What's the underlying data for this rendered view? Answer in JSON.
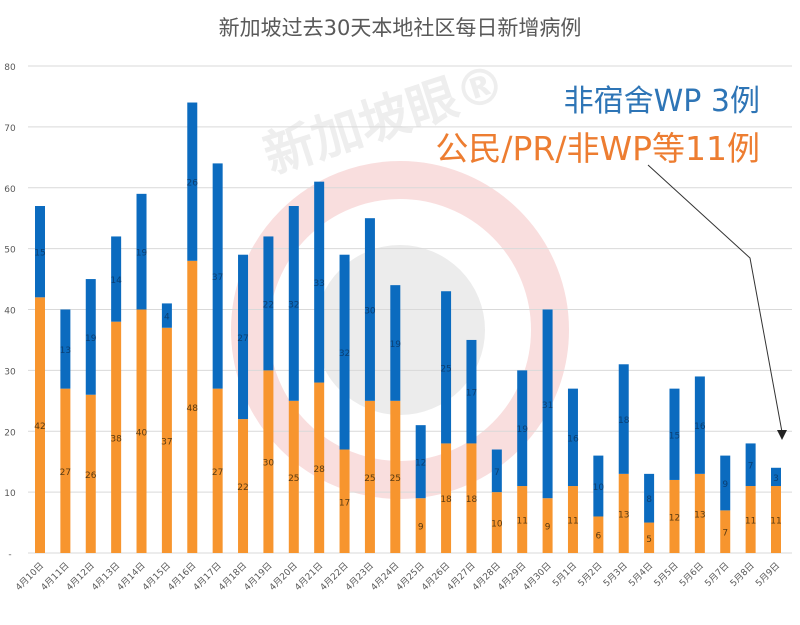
{
  "chart_data": {
    "type": "bar",
    "stacked": true,
    "title": "新加坡过去30天本地社区每日新增病例",
    "watermark": "新加坡眼®",
    "categories": [
      "4月10日",
      "4月11日",
      "4月12日",
      "4月13日",
      "4月14日",
      "4月15日",
      "4月16日",
      "4月17日",
      "4月18日",
      "4月19日",
      "4月20日",
      "4月21日",
      "4月22日",
      "4月23日",
      "4月24日",
      "4月25日",
      "4月26日",
      "4月27日",
      "4月28日",
      "4月29日",
      "4月30日",
      "5月1日",
      "5月2日",
      "5月3日",
      "5月4日",
      "5月5日",
      "5月6日",
      "5月7日",
      "5月8日",
      "5月9日"
    ],
    "series": [
      {
        "name": "公民/PR/非WP等",
        "color": "#f7952e",
        "values": [
          42,
          27,
          26,
          38,
          40,
          37,
          48,
          27,
          22,
          30,
          25,
          28,
          17,
          25,
          25,
          9,
          18,
          18,
          10,
          11,
          9,
          11,
          6,
          13,
          5,
          12,
          13,
          7,
          11,
          11
        ]
      },
      {
        "name": "非宿舍WP",
        "color": "#0b6bbf",
        "values": [
          15,
          13,
          19,
          14,
          19,
          4,
          26,
          37,
          27,
          22,
          32,
          33,
          32,
          30,
          19,
          12,
          25,
          17,
          7,
          19,
          31,
          16,
          10,
          18,
          8,
          15,
          16,
          9,
          7,
          3
        ]
      }
    ],
    "ylim": [
      0,
      80
    ],
    "yticks": [
      "-",
      "10",
      "20",
      "30",
      "40",
      "50",
      "60",
      "70",
      "80"
    ],
    "grid": true,
    "annotations": [
      "非宿舍WP 3例",
      "公民/PR/非WP等11例"
    ]
  }
}
